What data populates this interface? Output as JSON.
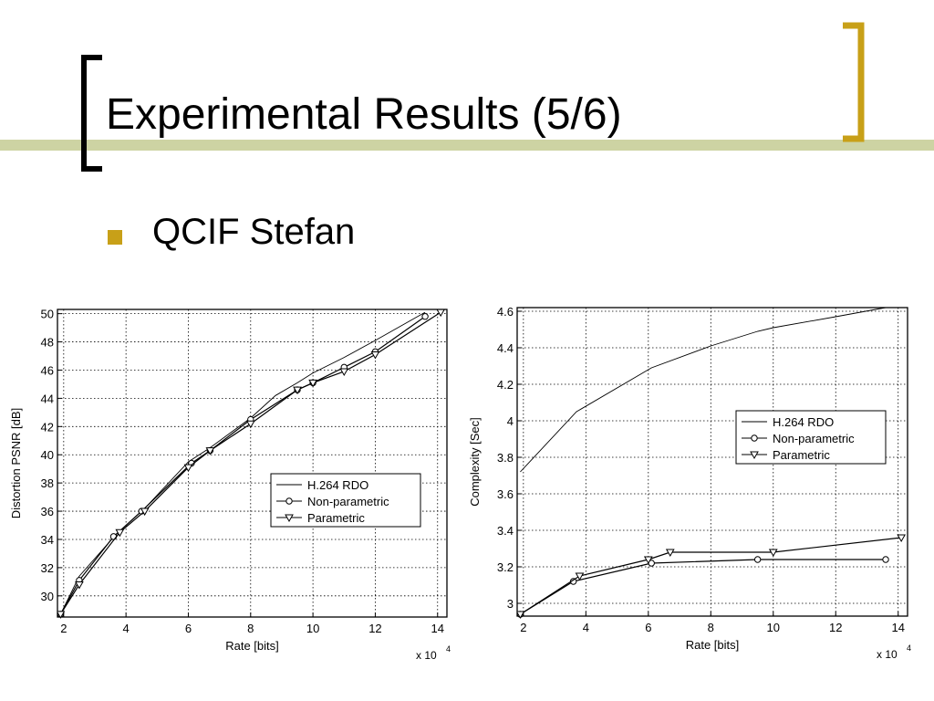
{
  "slide": {
    "title": "Experimental Results (5/6)",
    "bullet": "QCIF Stefan",
    "accent_color": "#c8a018",
    "bar_color": "#cdd3a3"
  },
  "chart_data": [
    {
      "type": "line",
      "xlabel": "Rate [bits]",
      "ylabel": "Distortion PSNR [dB]",
      "x_multiplier": "x 10",
      "x_multiplier_exp": "4",
      "xlim": [
        1.8,
        14.3
      ],
      "ylim": [
        28.5,
        50.3
      ],
      "xticks": [
        2,
        4,
        6,
        8,
        10,
        12,
        14
      ],
      "yticks": [
        30,
        32,
        34,
        36,
        38,
        40,
        42,
        44,
        46,
        48,
        50
      ],
      "grid": true,
      "legend": "bottom-right",
      "series": [
        {
          "name": "H.264 RDO",
          "marker": "none",
          "x": [
            1.9,
            2.5,
            3.7,
            4.6,
            6.0,
            6.7,
            8.0,
            8.8,
            9.5,
            10.0,
            11.0,
            12.0,
            13.6
          ],
          "y": [
            28.7,
            31.4,
            34.4,
            36.2,
            39.5,
            40.5,
            42.6,
            44.2,
            45.1,
            45.8,
            46.9,
            48.1,
            50.1
          ]
        },
        {
          "name": "Non-parametric",
          "marker": "circle",
          "x": [
            1.9,
            2.5,
            3.6,
            4.5,
            6.1,
            6.7,
            8.0,
            9.5,
            10.0,
            11.0,
            12.0,
            13.6
          ],
          "y": [
            28.7,
            31.1,
            34.2,
            36.0,
            39.4,
            40.3,
            42.5,
            44.6,
            45.1,
            46.2,
            47.3,
            49.8
          ]
        },
        {
          "name": "Parametric",
          "marker": "triangle",
          "x": [
            1.9,
            2.5,
            3.8,
            4.6,
            6.0,
            6.7,
            8.0,
            9.5,
            10.0,
            11.0,
            12.0,
            14.1
          ],
          "y": [
            28.7,
            30.8,
            34.5,
            36.0,
            39.1,
            40.3,
            42.2,
            44.6,
            45.1,
            45.9,
            47.1,
            50.1
          ]
        }
      ]
    },
    {
      "type": "line",
      "xlabel": "Rate [bits]",
      "ylabel": "Complexity [Sec]",
      "x_multiplier": "x 10",
      "x_multiplier_exp": "4",
      "xlim": [
        1.8,
        14.3
      ],
      "ylim": [
        2.93,
        4.62
      ],
      "xticks": [
        2,
        4,
        6,
        8,
        10,
        12,
        14
      ],
      "yticks": [
        3,
        3.2,
        3.4,
        3.6,
        3.8,
        4,
        4.2,
        4.4,
        4.6
      ],
      "grid": true,
      "legend": "center-right",
      "series": [
        {
          "name": "H.264 RDO",
          "marker": "none",
          "x": [
            1.9,
            3.7,
            6.1,
            8.0,
            9.5,
            10.0,
            12.0,
            13.6
          ],
          "y": [
            3.72,
            4.05,
            4.29,
            4.41,
            4.49,
            4.51,
            4.57,
            4.62
          ]
        },
        {
          "name": "Non-parametric",
          "marker": "circle",
          "x": [
            1.9,
            3.6,
            6.1,
            9.5,
            13.6
          ],
          "y": [
            2.94,
            3.12,
            3.22,
            3.24,
            3.24
          ]
        },
        {
          "name": "Parametric",
          "marker": "triangle",
          "x": [
            1.9,
            3.8,
            6.0,
            6.7,
            10.0,
            14.1
          ],
          "y": [
            2.94,
            3.15,
            3.24,
            3.28,
            3.28,
            3.36
          ]
        }
      ]
    }
  ]
}
